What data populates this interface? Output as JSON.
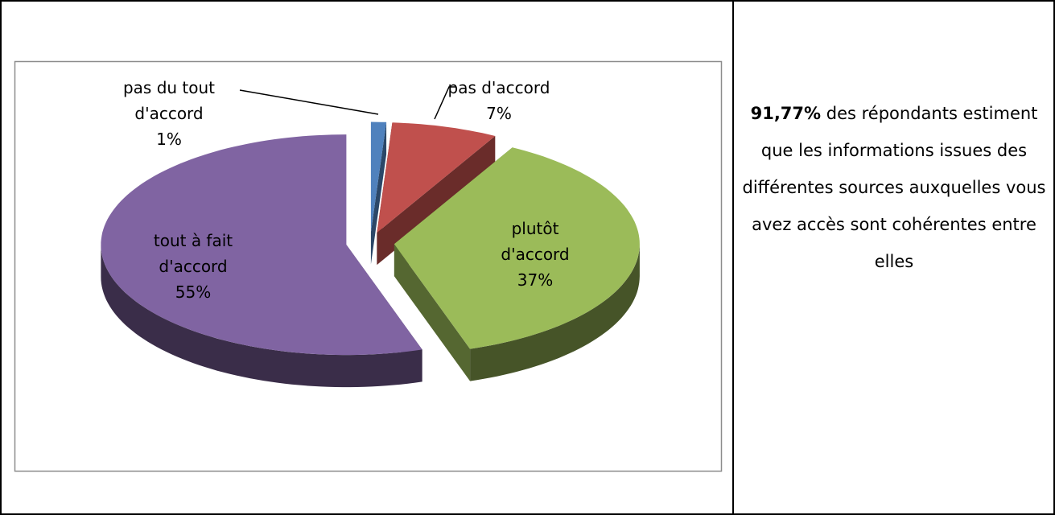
{
  "chart_data": {
    "type": "pie3d",
    "categories": [
      "pas du tout d'accord",
      "pas d'accord",
      "plutôt d'accord",
      "tout à fait d'accord"
    ],
    "values": [
      1,
      7,
      37,
      55
    ],
    "value_labels": [
      "1%",
      "7%",
      "37%",
      "55%"
    ],
    "colors": [
      "#4f81bd",
      "#c0504d",
      "#9bbb59",
      "#8064a2"
    ],
    "exploded": true
  },
  "caption": {
    "bold": "91,77%",
    "text": "des répondants estiment que les informations issues des différentes sources auxquelles vous avez accès sont cohérentes entre elles"
  }
}
